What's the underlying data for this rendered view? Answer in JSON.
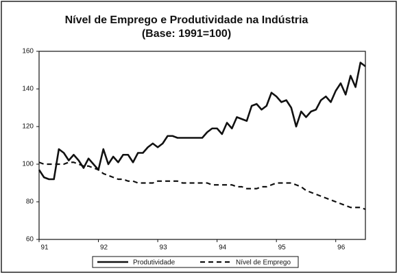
{
  "chart_data": {
    "type": "line",
    "title": "Nível de Emprego e Produtividade na Indústria",
    "subtitle": "(Base: 1991=100)",
    "x": [
      91,
      91.0833,
      91.1667,
      91.25,
      91.3333,
      91.4167,
      91.5,
      91.5833,
      91.6667,
      91.75,
      91.8333,
      91.9167,
      92,
      92.0833,
      92.1667,
      92.25,
      92.3333,
      92.4167,
      92.5,
      92.5833,
      92.6667,
      92.75,
      92.8333,
      92.9167,
      93,
      93.0833,
      93.1667,
      93.25,
      93.3333,
      93.4167,
      93.5,
      93.5833,
      93.6667,
      93.75,
      93.8333,
      93.9167,
      94,
      94.0833,
      94.1667,
      94.25,
      94.3333,
      94.4167,
      94.5,
      94.5833,
      94.6667,
      94.75,
      94.8333,
      94.9167,
      95,
      95.0833,
      95.1667,
      95.25,
      95.3333,
      95.4167,
      95.5,
      95.5833,
      95.6667,
      95.75,
      95.8333,
      95.9167,
      96,
      96.0833,
      96.1667,
      96.25,
      96.3333,
      96.4167,
      96.5
    ],
    "series": [
      {
        "name": "Produtividade",
        "color": "#111111",
        "dash": false,
        "values": [
          97,
          93,
          92,
          92,
          108,
          106,
          102,
          105,
          102,
          98,
          103,
          100,
          97,
          108,
          100,
          104,
          101,
          105,
          105,
          101,
          106,
          106,
          109,
          111,
          109,
          111,
          115,
          115,
          114,
          114,
          114,
          114,
          114,
          114,
          117,
          119,
          119,
          116,
          122,
          119,
          125,
          124,
          123,
          131,
          132,
          129,
          131,
          138,
          136,
          133,
          134,
          130,
          120,
          128,
          125,
          128,
          129,
          134,
          136,
          133,
          139,
          143,
          137,
          147,
          141,
          154,
          152
        ]
      },
      {
        "name": "Nível de Emprego",
        "color": "#111111",
        "dash": true,
        "values": [
          101,
          100,
          100,
          100,
          100,
          100,
          101,
          101,
          100,
          99,
          99,
          98,
          97,
          95,
          94,
          93,
          92,
          92,
          91,
          91,
          90,
          90,
          90,
          90,
          91,
          91,
          91,
          91,
          91,
          90,
          90,
          90,
          90,
          90,
          90,
          89,
          89,
          89,
          89,
          89,
          88,
          88,
          87,
          87,
          87,
          88,
          88,
          89,
          90,
          90,
          90,
          90,
          89,
          88,
          86,
          85,
          84,
          83,
          82,
          81,
          80,
          79,
          78,
          77,
          77,
          77,
          76
        ]
      }
    ],
    "xlim": [
      91,
      96.5
    ],
    "xticks": [
      91,
      92,
      93,
      94,
      95,
      96
    ],
    "ylim": [
      60,
      160
    ],
    "yticks": [
      60,
      80,
      100,
      120,
      140,
      160
    ]
  }
}
